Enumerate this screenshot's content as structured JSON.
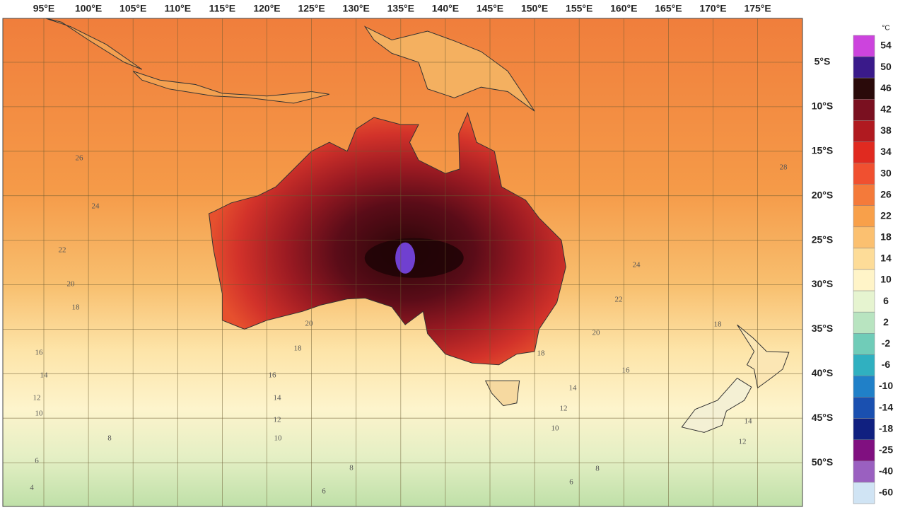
{
  "map": {
    "lon_labels": [
      "95°E",
      "100°E",
      "105°E",
      "110°E",
      "115°E",
      "120°E",
      "125°E",
      "130°E",
      "135°E",
      "140°E",
      "145°E",
      "150°E",
      "155°E",
      "160°E",
      "165°E",
      "170°E",
      "175°E"
    ],
    "lat_labels": [
      "5°S",
      "10°S",
      "15°S",
      "20°S",
      "25°S",
      "30°S",
      "35°S",
      "40°S",
      "45°S",
      "50°S"
    ],
    "colorbar": {
      "unit": "°C",
      "labels": [
        54,
        50,
        46,
        42,
        38,
        34,
        30,
        26,
        22,
        18,
        14,
        10,
        6,
        2,
        -2,
        -6,
        -10,
        -14,
        -18,
        -25,
        -40,
        -60
      ],
      "colors": [
        "#cc44dd",
        "#3a1a8a",
        "#2a0a0a",
        "#7a1020",
        "#b01a20",
        "#e02a20",
        "#f05030",
        "#f47a3a",
        "#f8a04a",
        "#fbc070",
        "#fddc98",
        "#fff4c8",
        "#e6f4d0",
        "#b8e4c0",
        "#70ccb8",
        "#30b0c0",
        "#2080c8",
        "#1a50b0",
        "#102080",
        "#801080",
        "#9a60c0",
        "#d0e4f4"
      ]
    },
    "contour_labels": [
      "26",
      "24",
      "22",
      "20",
      "18",
      "16",
      "14",
      "12",
      "10",
      "8",
      "6",
      "4",
      "28",
      "24",
      "22",
      "20",
      "18",
      "16",
      "14",
      "12",
      "10",
      "8",
      "6",
      "18",
      "14",
      "12",
      "20",
      "18",
      "16",
      "14",
      "12",
      "10",
      "8",
      "6"
    ]
  }
}
